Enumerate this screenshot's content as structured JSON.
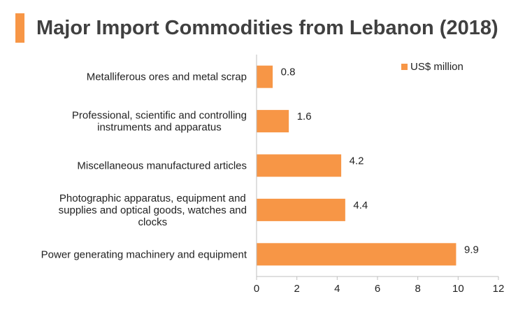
{
  "title": "Major Import Commodities from Lebanon (2018)",
  "colors": {
    "accent": "#F79646",
    "bar": "#F79646",
    "axis": "#BFBFBF",
    "text": "#222222",
    "title": "#404040"
  },
  "chart_data": {
    "type": "bar",
    "orientation": "horizontal",
    "title": "Major Import Commodities from Lebanon (2018)",
    "xlabel": "",
    "ylabel": "",
    "categories": [
      [
        "Metalliferous ores and metal scrap"
      ],
      [
        "Professional, scientific and controlling",
        "instruments and apparatus"
      ],
      [
        "Miscellaneous manufactured articles"
      ],
      [
        "Photographic apparatus, equipment and",
        "supplies and optical goods, watches and",
        "clocks"
      ],
      [
        "Power generating machinery and equipment"
      ]
    ],
    "series": [
      {
        "name": "US$ million",
        "values": [
          0.8,
          1.6,
          4.2,
          4.4,
          9.9
        ]
      }
    ],
    "xlim": [
      0,
      12
    ],
    "ticks": [
      0,
      2,
      4,
      6,
      8,
      10,
      12
    ],
    "grid": false,
    "legend": "top-right"
  }
}
